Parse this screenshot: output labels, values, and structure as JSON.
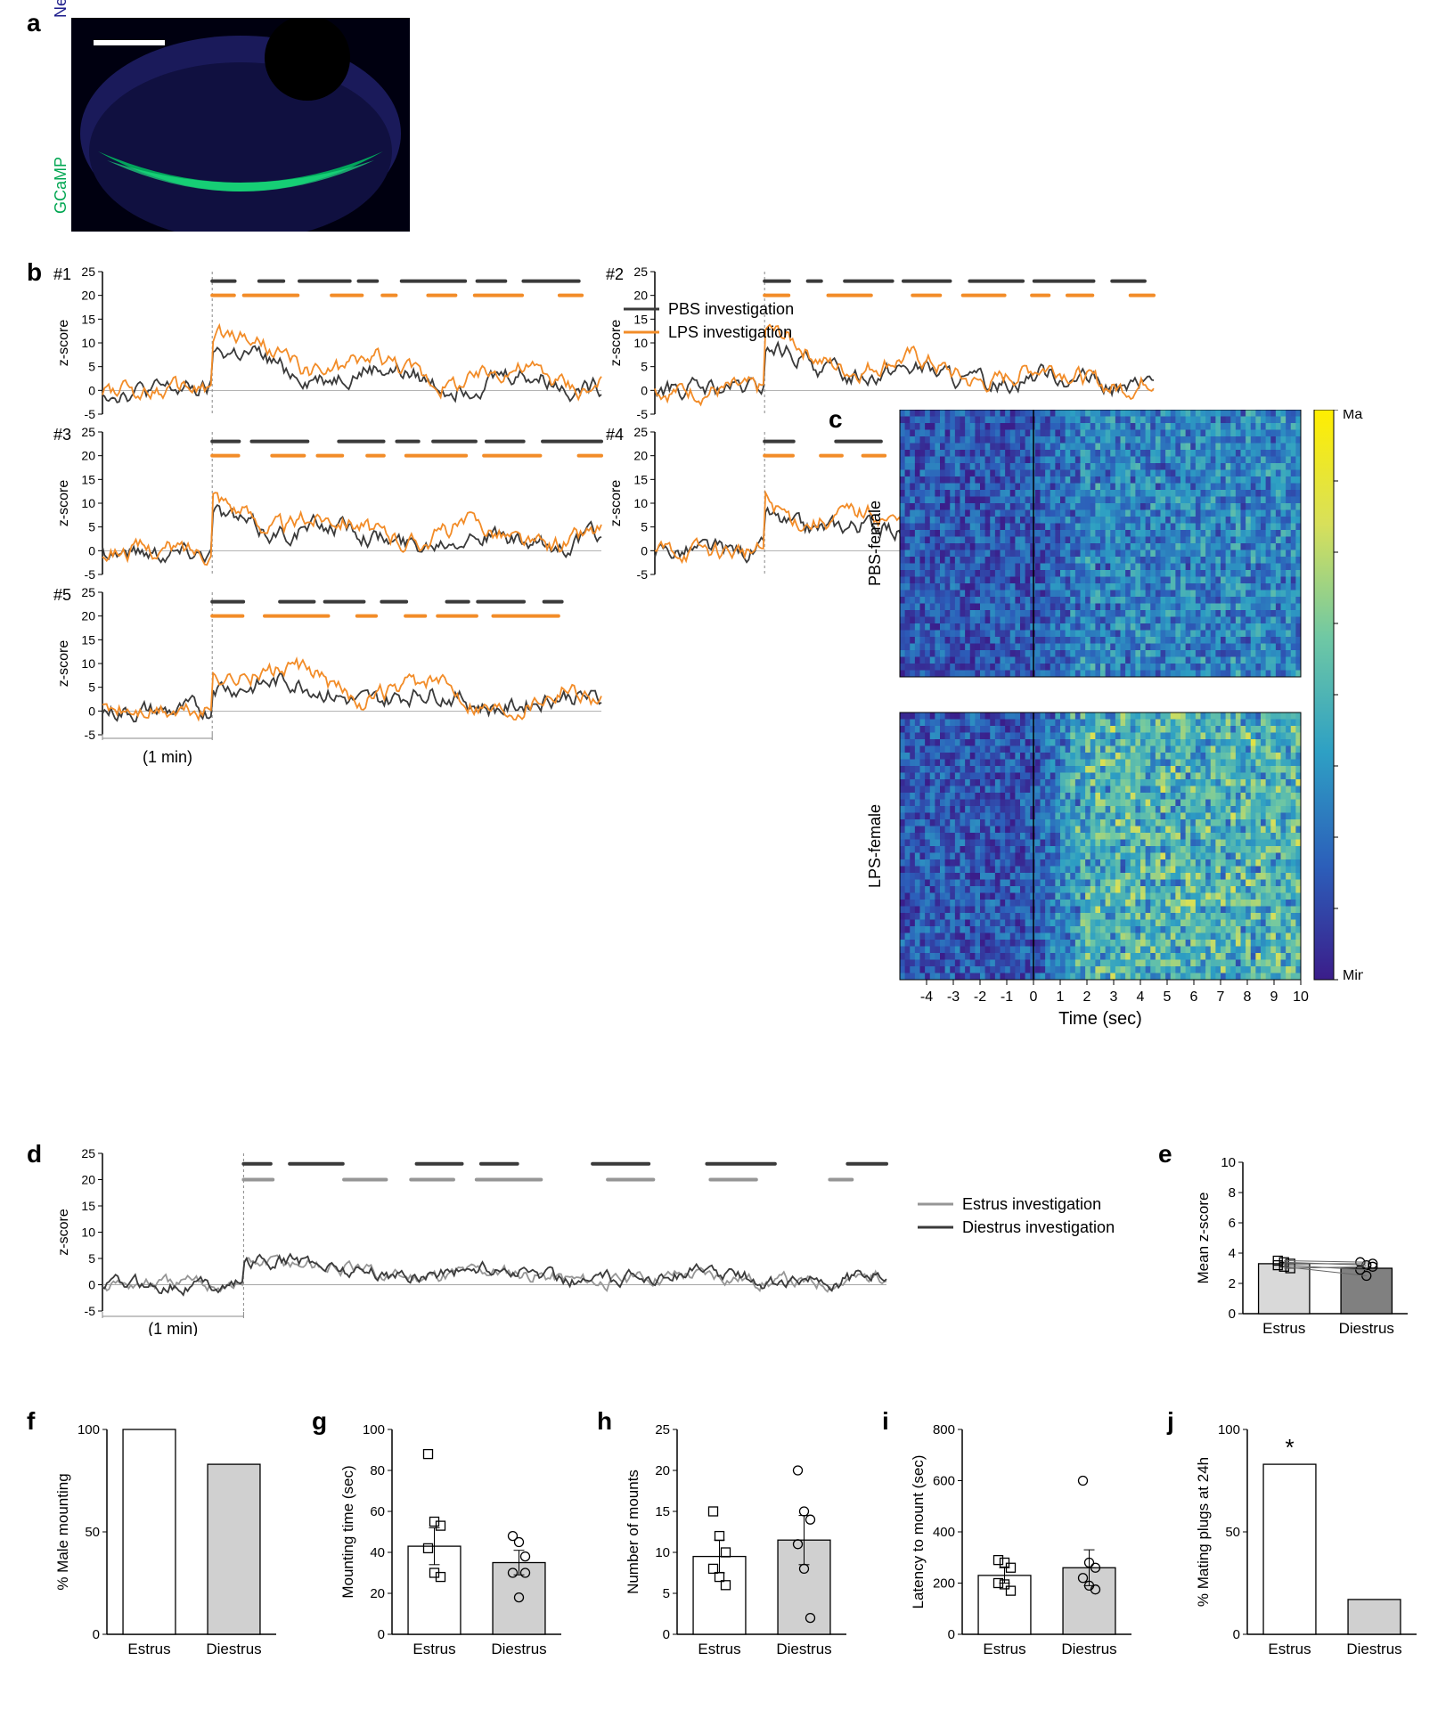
{
  "panel_a": {
    "label": "a",
    "y_label_top": "Neurotrace",
    "y_label_bottom": "GCaMP",
    "colors": {
      "neurotrace": "#1a1a8a",
      "gcamp": "#00a651",
      "bg": "#000000"
    }
  },
  "panel_b": {
    "label": "b",
    "legend_pbs": "PBS investigation",
    "legend_lps": "LPS investigation",
    "color_pbs": "#3a3a3a",
    "color_lps": "#f28c28",
    "y_axis_label": "z-score",
    "x_scale_label": "(1 min)",
    "y_ticks": [
      -5,
      0,
      5,
      10,
      15,
      20,
      25
    ],
    "subjects": [
      "#1",
      "#2",
      "#3",
      "#4",
      "#5"
    ]
  },
  "panel_c": {
    "label": "c",
    "y_label_top": "PBS-female",
    "y_label_bottom": "LPS-female",
    "x_axis_label": "Time (sec)",
    "x_ticks": [
      -4,
      -3,
      -2,
      -1,
      0,
      1,
      2,
      3,
      4,
      5,
      6,
      7,
      8,
      9,
      10
    ],
    "colorbar_max": "Max",
    "colorbar_min": "Min",
    "heatmap_colors": [
      "#3b1d8a",
      "#2c5fba",
      "#2ea0c4",
      "#6fc8a4",
      "#d8e05a",
      "#ffee00"
    ]
  },
  "panel_d": {
    "label": "d",
    "legend_estrus": "Estrus investigation",
    "legend_diestrus": "Diestrus investigation",
    "color_estrus": "#969696",
    "color_diestrus": "#3a3a3a",
    "y_axis_label": "z-score",
    "x_scale_label": "(1 min)",
    "y_ticks": [
      -5,
      0,
      5,
      10,
      15,
      20,
      25
    ]
  },
  "panel_e": {
    "label": "e",
    "y_axis_label": "Mean z-score",
    "y_ticks": [
      0,
      2,
      4,
      6,
      8,
      10
    ],
    "categories": [
      "Estrus",
      "Diestrus"
    ],
    "values": [
      3.3,
      3.0
    ],
    "colors": [
      "#d9d9d9",
      "#808080"
    ]
  },
  "panel_f": {
    "label": "f",
    "y_axis_label": "% Male mounting",
    "y_ticks": [
      0,
      50,
      100
    ],
    "categories": [
      "Estrus",
      "Diestrus"
    ],
    "values": [
      100,
      83
    ],
    "colors": [
      "#ffffff",
      "#d0d0d0"
    ]
  },
  "panel_g": {
    "label": "g",
    "y_axis_label": "Mounting time (sec)",
    "y_ticks": [
      0,
      20,
      40,
      60,
      80,
      100
    ],
    "categories": [
      "Estrus",
      "Diestrus"
    ],
    "values": [
      43,
      35
    ],
    "colors": [
      "#ffffff",
      "#d0d0d0"
    ],
    "points_estrus": [
      88,
      55,
      53,
      42,
      30,
      28
    ],
    "points_diestrus": [
      48,
      45,
      38,
      30,
      18,
      30
    ]
  },
  "panel_h": {
    "label": "h",
    "y_axis_label": "Number of mounts",
    "y_ticks": [
      0,
      5,
      10,
      15,
      20,
      25
    ],
    "categories": [
      "Estrus",
      "Diestrus"
    ],
    "values": [
      9.5,
      11.5
    ],
    "colors": [
      "#ffffff",
      "#d0d0d0"
    ],
    "points_estrus": [
      15,
      12,
      10,
      8,
      7,
      6
    ],
    "points_diestrus": [
      20,
      15,
      14,
      11,
      8,
      2
    ]
  },
  "panel_i": {
    "label": "i",
    "y_axis_label": "Latency to mount (sec)",
    "y_ticks": [
      0,
      200,
      400,
      600,
      800
    ],
    "categories": [
      "Estrus",
      "Diestrus"
    ],
    "values": [
      230,
      260
    ],
    "colors": [
      "#ffffff",
      "#d0d0d0"
    ],
    "points_estrus": [
      290,
      280,
      260,
      200,
      195,
      170
    ],
    "points_diestrus": [
      600,
      280,
      260,
      220,
      190,
      175
    ]
  },
  "panel_j": {
    "label": "j",
    "y_axis_label": "% Mating plugs at 24h",
    "y_ticks": [
      0,
      50,
      100
    ],
    "categories": [
      "Estrus",
      "Diestrus"
    ],
    "values": [
      83,
      17
    ],
    "colors": [
      "#ffffff",
      "#d0d0d0"
    ],
    "sig_marker": "*"
  }
}
